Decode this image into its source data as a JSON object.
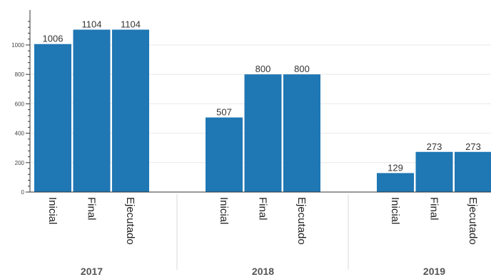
{
  "chart_data": {
    "type": "bar",
    "groups": [
      "2017",
      "2018",
      "2019"
    ],
    "categories": [
      "Inicial",
      "Final",
      "Ejecutado"
    ],
    "series": [
      {
        "group": "2017",
        "values": [
          1006,
          1104,
          1104
        ]
      },
      {
        "group": "2018",
        "values": [
          507,
          800,
          800
        ]
      },
      {
        "group": "2019",
        "values": [
          129,
          273,
          273
        ]
      }
    ],
    "y_ticks": [
      0,
      200,
      400,
      600,
      800,
      1000
    ],
    "ylim": [
      0,
      1160
    ],
    "grid": true,
    "bar_color": "#1f77b4",
    "title": "",
    "xlabel": "",
    "ylabel": ""
  }
}
